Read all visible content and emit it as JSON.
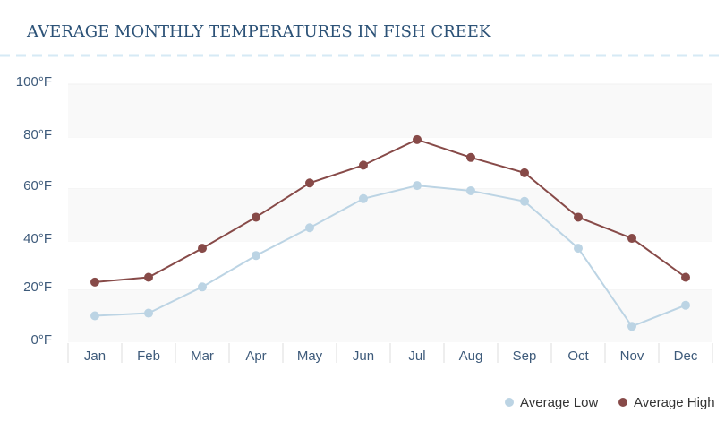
{
  "chart_data": {
    "type": "line",
    "title": "AVERAGE MONTHLY TEMPERATURES IN FISH CREEK",
    "categories": [
      "Jan",
      "Feb",
      "Mar",
      "Apr",
      "May",
      "Jun",
      "Jul",
      "Aug",
      "Sep",
      "Oct",
      "Nov",
      "Dec"
    ],
    "y_ticks": [
      "0°F",
      "20°F",
      "40°F",
      "60°F",
      "80°F",
      "100°F"
    ],
    "ylim": [
      0,
      100
    ],
    "grid": true,
    "legend_position": "bottom-right",
    "series": [
      {
        "name": "Average Low",
        "color": "#bcd4e4",
        "values": [
          10,
          11,
          21,
          34,
          45,
          56,
          61,
          59,
          55,
          37,
          6,
          14
        ]
      },
      {
        "name": "Average High",
        "color": "#874a48",
        "values": [
          23,
          25,
          37,
          49,
          62,
          69,
          79,
          72,
          66,
          49,
          41,
          25
        ]
      }
    ]
  },
  "colors": {
    "title": "#2c5277",
    "divider": "#d6eaf5",
    "band": "#f9f9f9"
  }
}
